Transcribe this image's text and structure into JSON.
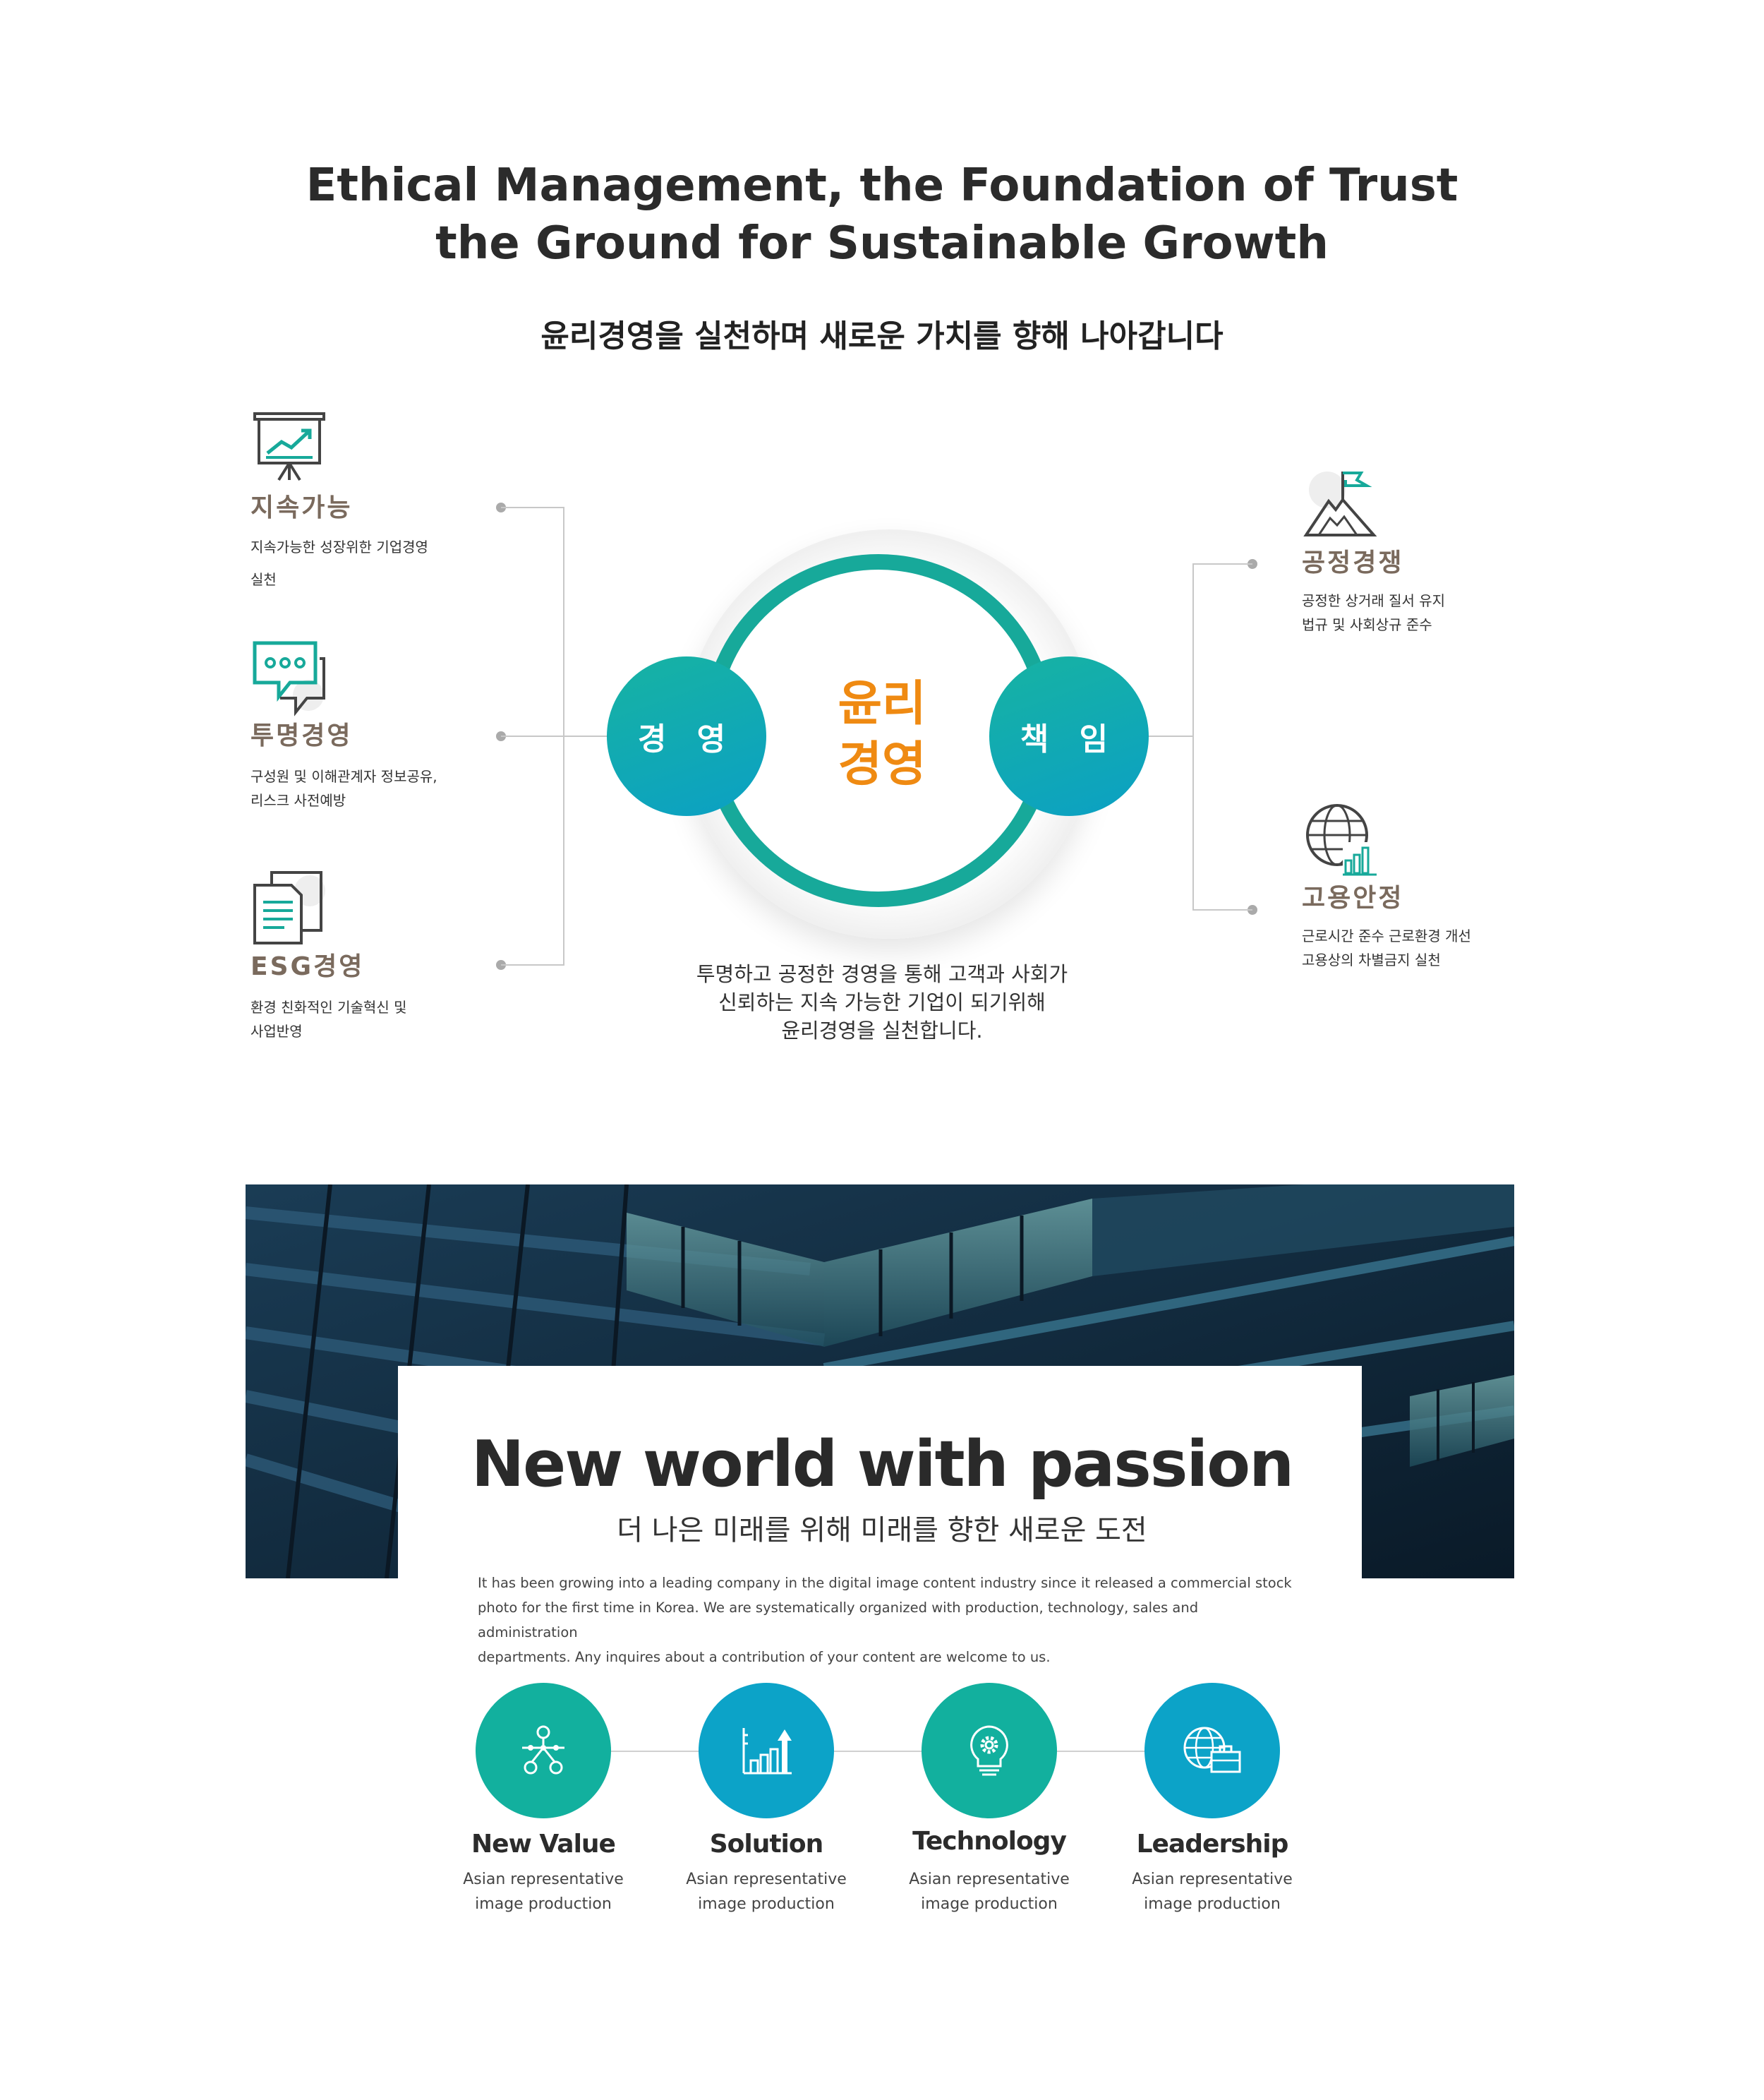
{
  "header": {
    "title_line1": "Ethical Management, the Foundation of Trust",
    "title_line2": "the Ground for Sustainable Growth",
    "subtitle": "윤리경영을 실천하며 새로운 가치를 향해 나아갑니다"
  },
  "features_left": [
    {
      "title": "지속가능",
      "desc1": "지속가능한 성장위한 기업경영",
      "desc2": "실천",
      "icon": "presentation-chart-icon"
    },
    {
      "title": "투명경영",
      "desc1": "구성원 및 이해관계자 정보공유,",
      "desc2": "리스크 사전예방",
      "icon": "chat-bubble-icon"
    },
    {
      "title": "ESG경영",
      "desc1": "환경 친화적인 기술혁신 및",
      "desc2": "사업반영",
      "icon": "documents-icon"
    }
  ],
  "features_right": [
    {
      "title": "공정경쟁",
      "desc1": "공정한 상거래 질서 유지",
      "desc2": "법규 및 사회상규 준수",
      "icon": "mountain-flag-icon"
    },
    {
      "title": "고용안정",
      "desc1": "근로시간 준수 근로환경 개선",
      "desc2": "고용상의 차별금지 실천",
      "icon": "globe-chart-icon"
    }
  ],
  "diagram": {
    "center_line1": "윤리",
    "center_line2": "경영",
    "left_circle": "경 영",
    "right_circle": "책 임",
    "desc_line1": "투명하고 공정한 경영을 통해 고객과 사회가",
    "desc_line2": "신뢰하는 지속 가능한 기업이 되기위해",
    "desc_line3": "윤리경영을 실천합니다."
  },
  "passion": {
    "title": "New world with passion",
    "subtitle": "더 나은 미래를 위해 미래를 향한 새로운 도전",
    "desc_line1": "It has been growing into a leading company in the digital image content industry since it released a commercial stock",
    "desc_line2": "photo for the first time in Korea. We are systematically organized with production, technology, sales and administration",
    "desc_line3": "departments. Any inquires about a contribution of your content are welcome to us."
  },
  "values": [
    {
      "title": "New Value",
      "desc1": "Asian representative",
      "desc2": "image production",
      "icon": "network-nodes-icon",
      "color": "#12b09e"
    },
    {
      "title": "Solution",
      "desc1": "Asian representative",
      "desc2": "image production",
      "icon": "bar-chart-arrow-icon",
      "color": "#0ca3c8"
    },
    {
      "title": "Technology",
      "desc1": "Asian representative",
      "desc2": "image production",
      "icon": "lightbulb-gear-icon",
      "color": "#12b09e"
    },
    {
      "title": "Leadership",
      "desc1": "Asian representative",
      "desc2": "image production",
      "icon": "globe-briefcase-icon",
      "color": "#0ca3c8"
    }
  ],
  "colors": {
    "teal": "#17a99a",
    "blue": "#0ba0c4",
    "orange": "#ef8a12",
    "brown": "#7a6a5d"
  }
}
